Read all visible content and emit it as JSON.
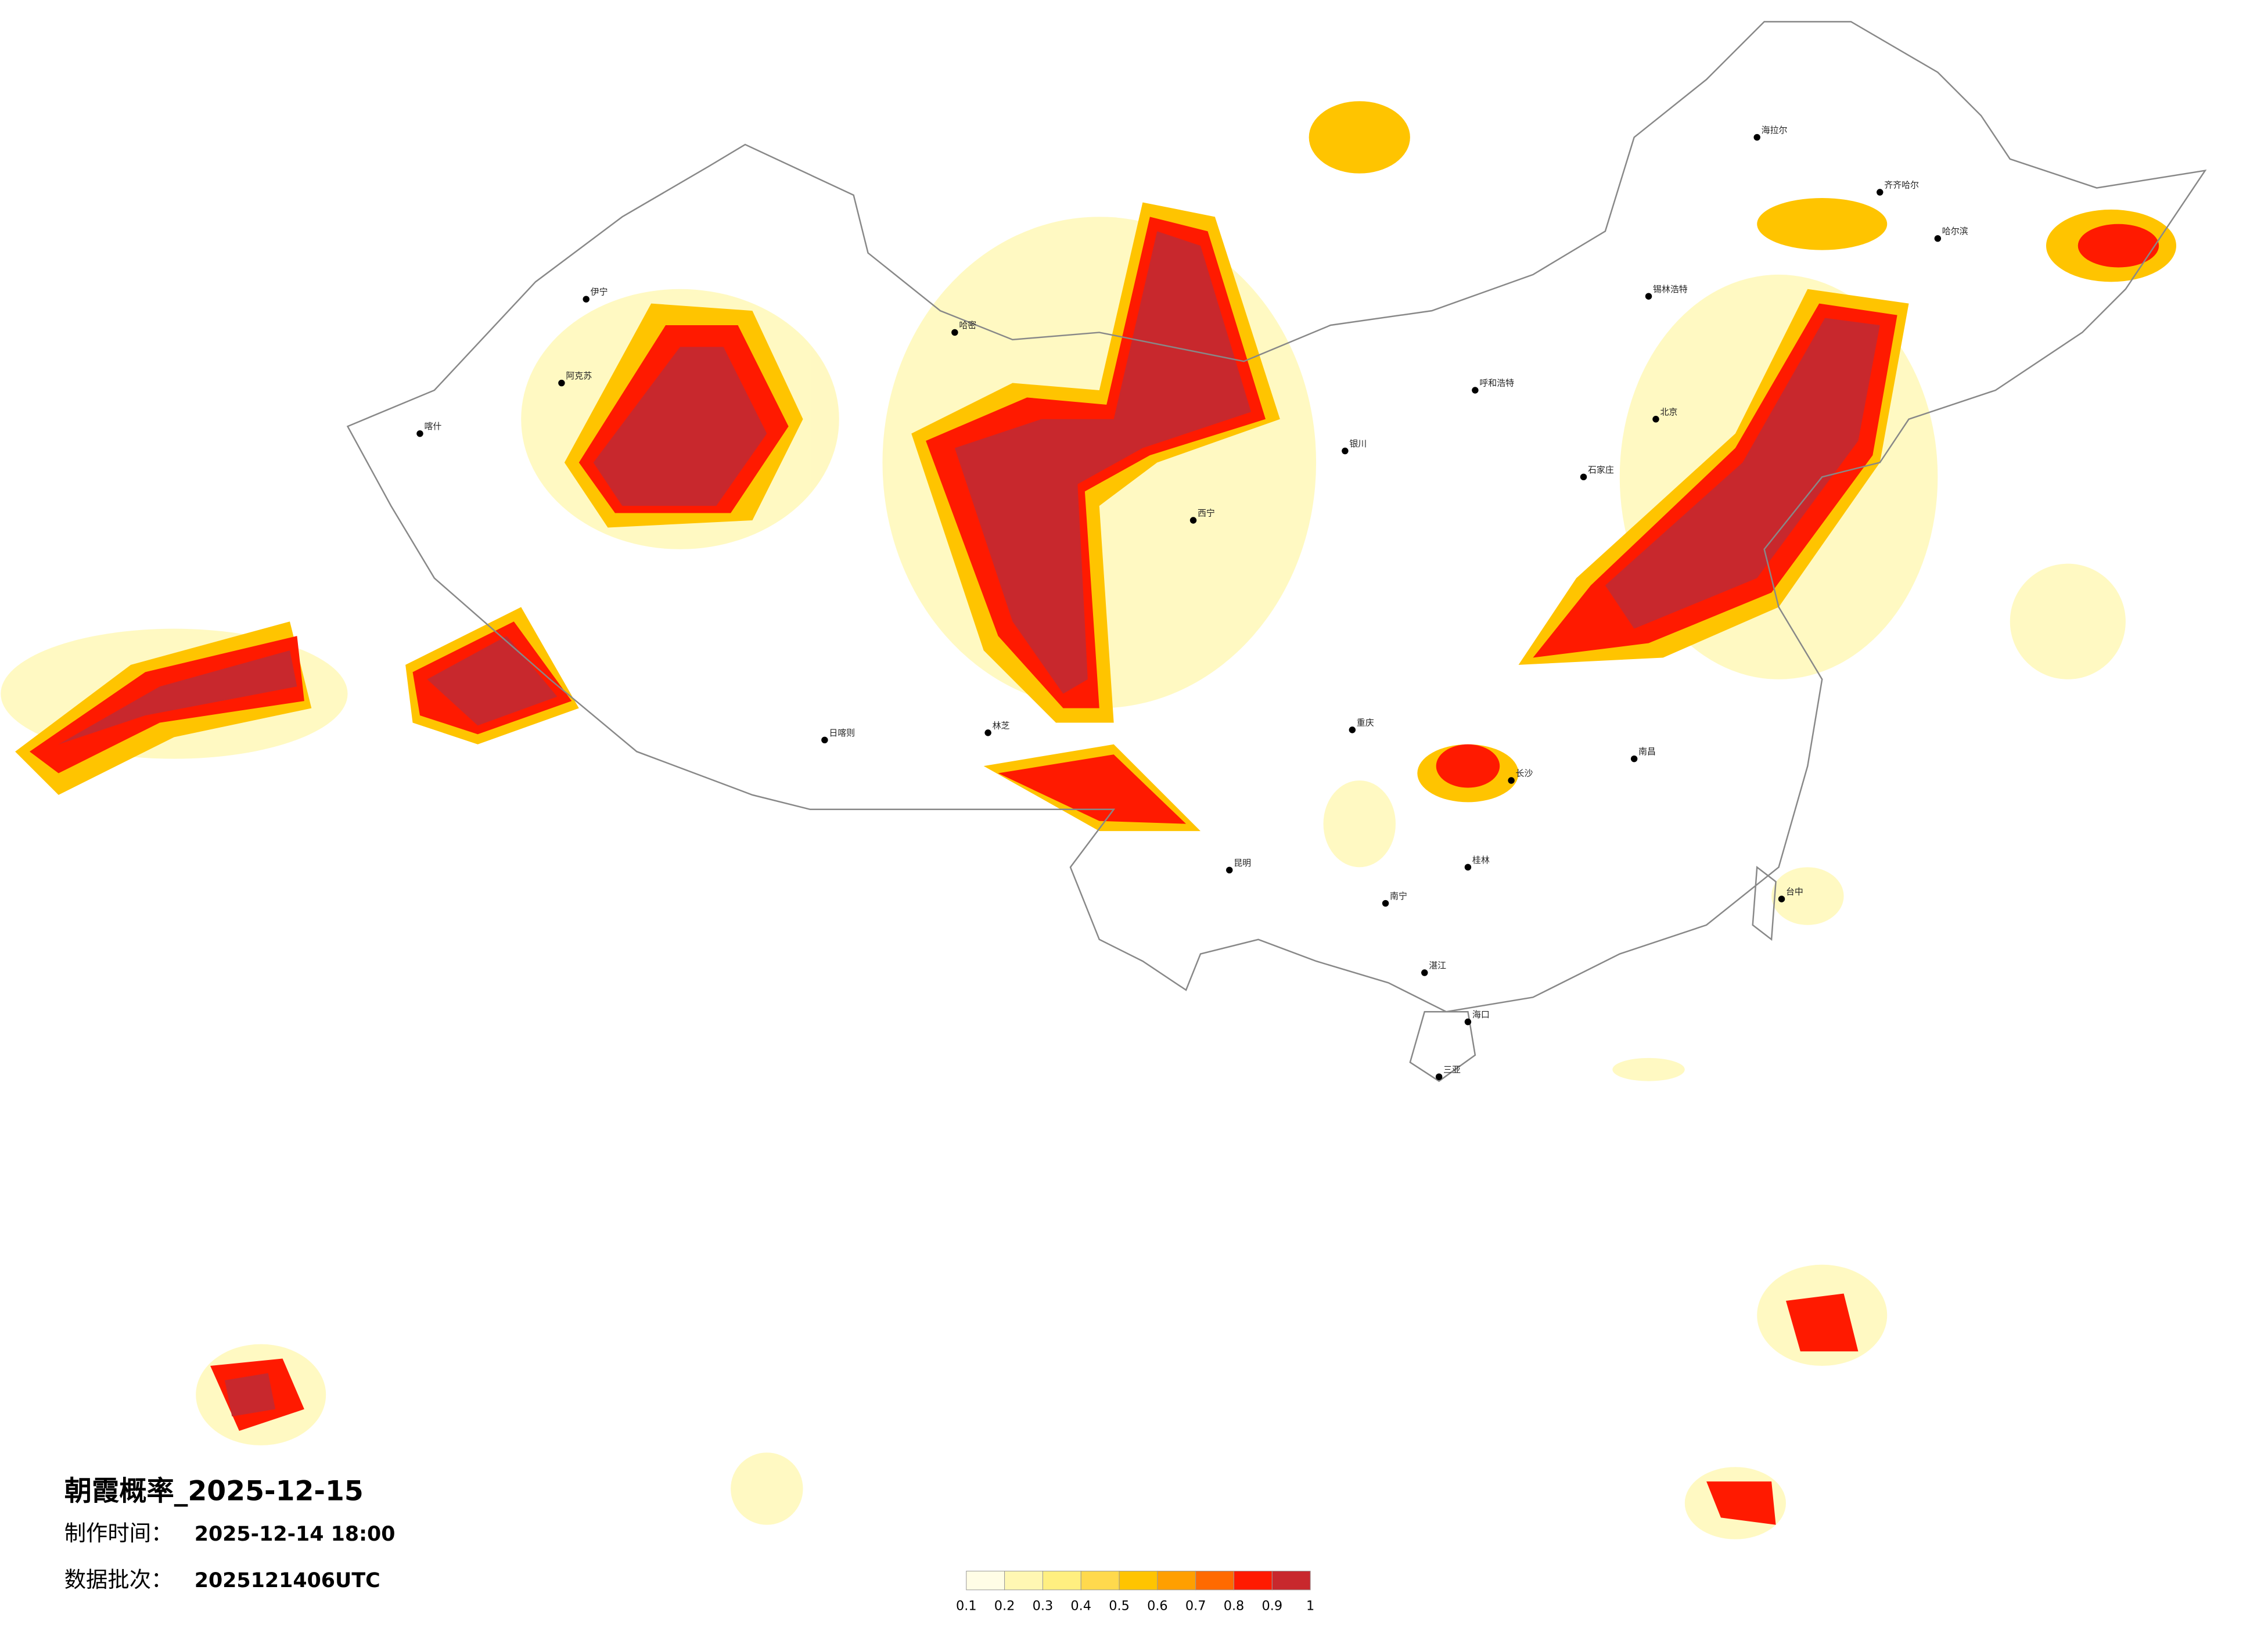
{
  "header": {
    "title": "朝霞概率_2025-12-15",
    "make_time_label": "制作时间：",
    "make_time": "2025-12-14 18:00",
    "batch_label": "数据批次：",
    "batch": "2025121406UTC"
  },
  "legend": {
    "colors": [
      "#fffde6",
      "#fff7b3",
      "#ffef80",
      "#ffd94d",
      "#ffc400",
      "#ff9f00",
      "#ff6a00",
      "#ff1a00",
      "#c8282d"
    ],
    "ticks": [
      0.1,
      0.2,
      0.3,
      0.4,
      0.5,
      0.6,
      0.7,
      0.8,
      0.9,
      1
    ]
  },
  "cities": [
    "海拉尔",
    "齐齐哈尔",
    "哈尔滨",
    "锡林浩特",
    "呼和浩特",
    "北京",
    "石家庄",
    "银川",
    "西宁",
    "哈密",
    "伊宁",
    "阿克苏",
    "喀什",
    "日喀则",
    "林芝",
    "重庆",
    "昆明",
    "长沙",
    "南昌",
    "桂林",
    "南宁",
    "湛江",
    "海口",
    "三亚",
    "台中"
  ]
}
